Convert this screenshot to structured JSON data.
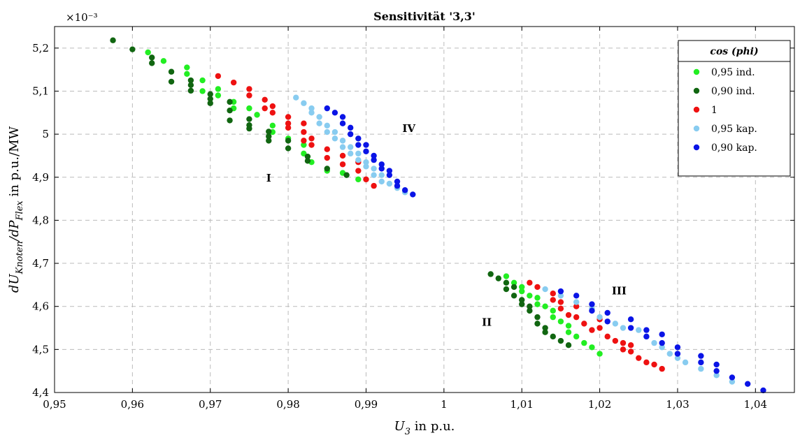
{
  "chart_data": {
    "type": "scatter",
    "title": "Sensitivität '3,3'",
    "exponent_label": "×10⁻³",
    "xlabel": {
      "base": "U",
      "sub": "3",
      "suffix": " in p.u."
    },
    "ylabel": {
      "p1": "dU",
      "s1": "Knoten",
      "p2": "/dP",
      "s2": "Flex",
      "suffix": " in p.u./MW"
    },
    "xlim": [
      0.95,
      1.045
    ],
    "ylim": [
      4.4,
      5.25
    ],
    "xticks": [
      0.95,
      0.96,
      0.97,
      0.98,
      0.99,
      1.0,
      1.01,
      1.02,
      1.03,
      1.04
    ],
    "xtick_labels": [
      "0,95",
      "0,96",
      "0,97",
      "0,98",
      "0,99",
      "1",
      "1,01",
      "1,02",
      "1,03",
      "1,04"
    ],
    "yticks": [
      4.4,
      4.5,
      4.6,
      4.7,
      4.8,
      4.9,
      5.0,
      5.1,
      5.2
    ],
    "ytick_labels": [
      "4,4",
      "4,5",
      "4,6",
      "4,7",
      "4,8",
      "4,9",
      "5",
      "5,1",
      "5,2"
    ],
    "grid": true,
    "legend_title": "cos (phi)",
    "legend_position": "top-right",
    "annotations": [
      {
        "text": "I",
        "x": 0.9775,
        "y": 4.89
      },
      {
        "text": "II",
        "x": 1.0055,
        "y": 4.555
      },
      {
        "text": "III",
        "x": 1.0225,
        "y": 4.628
      },
      {
        "text": "IV",
        "x": 0.9955,
        "y": 5.005
      }
    ],
    "series": [
      {
        "name": "0,95 ind.",
        "color": "#22ee22",
        "x": [
          0.962,
          0.964,
          0.967,
          0.967,
          0.969,
          0.969,
          0.971,
          0.971,
          0.973,
          0.973,
          0.975,
          0.976,
          0.978,
          0.978,
          0.98,
          0.982,
          0.982,
          0.983,
          0.985,
          0.987,
          0.989,
          1.008,
          1.009,
          1.01,
          1.01,
          1.011,
          1.012,
          1.012,
          1.013,
          1.014,
          1.014,
          1.015,
          1.016,
          1.016,
          1.017,
          1.018,
          1.019,
          1.02
        ],
        "y": [
          5.19,
          5.17,
          5.155,
          5.14,
          5.125,
          5.1,
          5.105,
          5.09,
          5.075,
          5.06,
          5.06,
          5.045,
          5.02,
          5.005,
          4.99,
          4.975,
          4.955,
          4.935,
          4.915,
          4.91,
          4.895,
          4.67,
          4.655,
          4.645,
          4.635,
          4.625,
          4.62,
          4.605,
          4.6,
          4.59,
          4.575,
          4.565,
          4.555,
          4.54,
          4.53,
          4.515,
          4.505,
          4.49
        ]
      },
      {
        "name": "0,90 ind.",
        "color": "#116611",
        "x": [
          0.9575,
          0.96,
          0.9625,
          0.9625,
          0.965,
          0.965,
          0.9675,
          0.9675,
          0.9675,
          0.97,
          0.97,
          0.97,
          0.9725,
          0.9725,
          0.9725,
          0.975,
          0.975,
          0.975,
          0.9775,
          0.9775,
          0.9775,
          0.98,
          0.98,
          0.9825,
          0.9825,
          0.985,
          0.9875,
          1.006,
          1.007,
          1.008,
          1.008,
          1.009,
          1.009,
          1.01,
          1.01,
          1.011,
          1.011,
          1.012,
          1.012,
          1.013,
          1.013,
          1.014,
          1.015,
          1.016
        ],
        "y": [
          5.218,
          5.197,
          5.178,
          5.165,
          5.145,
          5.122,
          5.125,
          5.114,
          5.101,
          5.093,
          5.082,
          5.072,
          5.075,
          5.055,
          5.032,
          5.035,
          5.021,
          5.013,
          5.006,
          4.995,
          4.985,
          4.985,
          4.967,
          4.948,
          4.938,
          4.92,
          4.905,
          4.675,
          4.665,
          4.655,
          4.64,
          4.645,
          4.625,
          4.615,
          4.605,
          4.6,
          4.59,
          4.575,
          4.56,
          4.55,
          4.54,
          4.53,
          4.52,
          4.51
        ]
      },
      {
        "name": "1",
        "color": "#ee1111",
        "x": [
          0.971,
          0.973,
          0.975,
          0.975,
          0.977,
          0.977,
          0.978,
          0.978,
          0.98,
          0.98,
          0.98,
          0.982,
          0.982,
          0.982,
          0.983,
          0.983,
          0.985,
          0.985,
          0.987,
          0.987,
          0.989,
          0.989,
          0.99,
          0.991,
          1.011,
          1.012,
          1.014,
          1.014,
          1.015,
          1.015,
          1.016,
          1.017,
          1.017,
          1.018,
          1.019,
          1.02,
          1.02,
          1.021,
          1.022,
          1.023,
          1.023,
          1.024,
          1.024,
          1.025,
          1.026,
          1.027,
          1.028
        ],
        "y": [
          5.135,
          5.12,
          5.105,
          5.09,
          5.08,
          5.06,
          5.065,
          5.05,
          5.04,
          5.025,
          5.015,
          5.025,
          5.005,
          4.985,
          4.99,
          4.975,
          4.965,
          4.945,
          4.95,
          4.93,
          4.935,
          4.915,
          4.895,
          4.88,
          4.655,
          4.645,
          4.63,
          4.615,
          4.61,
          4.595,
          4.58,
          4.6,
          4.575,
          4.56,
          4.545,
          4.57,
          4.55,
          4.53,
          4.52,
          4.515,
          4.5,
          4.51,
          4.495,
          4.48,
          4.47,
          4.465,
          4.455
        ]
      },
      {
        "name": "0,95 kap.",
        "color": "#88ccf0",
        "x": [
          0.981,
          0.982,
          0.983,
          0.983,
          0.984,
          0.984,
          0.985,
          0.985,
          0.986,
          0.986,
          0.987,
          0.987,
          0.988,
          0.988,
          0.989,
          0.989,
          0.99,
          0.99,
          0.991,
          0.991,
          0.992,
          0.992,
          0.993,
          0.994,
          0.995,
          1.013,
          1.015,
          1.017,
          1.019,
          1.02,
          1.022,
          1.023,
          1.025,
          1.026,
          1.027,
          1.028,
          1.029,
          1.03,
          1.031,
          1.033,
          1.035,
          1.037
        ],
        "y": [
          5.085,
          5.072,
          5.06,
          5.05,
          5.04,
          5.025,
          5.02,
          5.005,
          5.005,
          4.99,
          4.985,
          4.97,
          4.97,
          4.955,
          4.955,
          4.94,
          4.935,
          4.925,
          4.92,
          4.905,
          4.905,
          4.89,
          4.885,
          4.875,
          4.865,
          4.64,
          4.625,
          4.61,
          4.595,
          4.575,
          4.56,
          4.55,
          4.545,
          4.53,
          4.515,
          4.505,
          4.49,
          4.48,
          4.47,
          4.455,
          4.44,
          4.425
        ]
      },
      {
        "name": "0,90 kap.",
        "color": "#0a14e6",
        "x": [
          0.985,
          0.986,
          0.987,
          0.987,
          0.988,
          0.988,
          0.989,
          0.989,
          0.99,
          0.99,
          0.991,
          0.991,
          0.992,
          0.992,
          0.993,
          0.993,
          0.994,
          0.994,
          0.995,
          0.996,
          1.015,
          1.017,
          1.019,
          1.019,
          1.021,
          1.021,
          1.024,
          1.024,
          1.026,
          1.026,
          1.028,
          1.028,
          1.03,
          1.03,
          1.033,
          1.033,
          1.035,
          1.035,
          1.037,
          1.039,
          1.041
        ],
        "y": [
          5.06,
          5.05,
          5.04,
          5.025,
          5.015,
          5.0,
          4.99,
          4.975,
          4.975,
          4.96,
          4.95,
          4.94,
          4.93,
          4.92,
          4.915,
          4.905,
          4.89,
          4.88,
          4.87,
          4.86,
          4.635,
          4.625,
          4.605,
          4.59,
          4.585,
          4.565,
          4.57,
          4.55,
          4.545,
          4.53,
          4.535,
          4.515,
          4.505,
          4.49,
          4.485,
          4.47,
          4.465,
          4.45,
          4.435,
          4.42,
          4.405
        ]
      }
    ]
  }
}
